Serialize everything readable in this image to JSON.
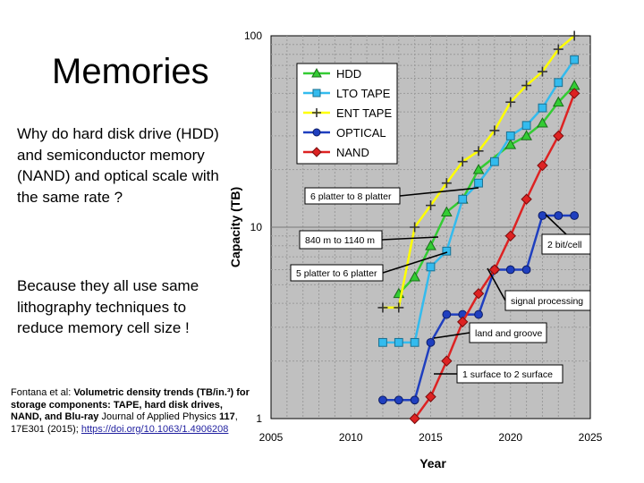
{
  "slide": {
    "title": "Memories",
    "paragraph1": "Why do hard disk drive (HDD) and semiconductor memory (NAND) and optical scale with the same rate ?",
    "paragraph2": "Because they all use same lithography techniques to reduce memory cell size !",
    "citation": {
      "authors": "Fontana et al: ",
      "title_bold": "Volumetric density trends (TB/in.³) for storage components: TAPE, hard disk drives, NAND, and Blu-ray",
      "journal": " Journal of Applied Physics ",
      "volume": "117",
      "rest": ", 17E301 (2015); ",
      "doi": "https://doi.org/10.1063/1.4906208"
    }
  },
  "chart_data": {
    "type": "line",
    "xlabel": "Year",
    "ylabel": "Capacity (TB)",
    "xlim": [
      2005,
      2025
    ],
    "ylim": [
      1,
      100
    ],
    "yscale": "log",
    "x_ticks": [
      "2005",
      "2010",
      "2015",
      "2020",
      "2025"
    ],
    "y_ticks": [
      "1",
      "10",
      "100"
    ],
    "grid": true,
    "legend_position": "top-left",
    "colors": {
      "HDD": "#33cc33",
      "LTO TAPE": "#33bbee",
      "ENT TAPE": "#ffff00",
      "OPTICAL": "#1f3fbf",
      "NAND": "#dd2222"
    },
    "series": [
      {
        "name": "HDD",
        "marker": "triangle",
        "x": [
          2013,
          2014,
          2015,
          2016,
          2017,
          2018,
          2020,
          2021,
          2022,
          2023,
          2024
        ],
        "y": [
          4.5,
          5.5,
          8,
          12,
          14,
          20,
          27,
          30,
          35,
          45,
          55
        ]
      },
      {
        "name": "LTO TAPE",
        "marker": "square",
        "x": [
          2012,
          2013,
          2014,
          2015,
          2016,
          2017,
          2018,
          2019,
          2020,
          2021,
          2022,
          2023,
          2024
        ],
        "y": [
          2.5,
          2.5,
          2.5,
          6.2,
          7.5,
          14,
          17,
          22,
          30,
          34,
          42,
          57,
          75
        ]
      },
      {
        "name": "ENT TAPE",
        "marker": "plus",
        "x": [
          2012,
          2013,
          2014,
          2015,
          2016,
          2017,
          2018,
          2019,
          2020,
          2021,
          2022,
          2023,
          2024
        ],
        "y": [
          3.8,
          3.8,
          10,
          13,
          17,
          22,
          25,
          32,
          45,
          55,
          65,
          85,
          100
        ]
      },
      {
        "name": "OPTICAL",
        "marker": "circle",
        "x": [
          2012,
          2013,
          2014,
          2015,
          2016,
          2017,
          2018,
          2019,
          2020,
          2021,
          2022,
          2023,
          2024
        ],
        "y": [
          1.25,
          1.25,
          1.25,
          2.5,
          3.5,
          3.5,
          3.5,
          6,
          6,
          6,
          11.5,
          11.5,
          11.5
        ]
      },
      {
        "name": "NAND",
        "marker": "diamond",
        "x": [
          2014,
          2015,
          2016,
          2017,
          2018,
          2019,
          2020,
          2021,
          2022,
          2023,
          2024
        ],
        "y": [
          1,
          1.3,
          2,
          3.2,
          4.5,
          6,
          9,
          14,
          21,
          30,
          50
        ]
      }
    ],
    "annotations": [
      {
        "text": "6 platter to 8 platter",
        "x": 2017.5,
        "y": 18
      },
      {
        "text": "840 m to 1140 m",
        "x": 2015.7,
        "y": 10.3
      },
      {
        "text": "5 platter to 6 platter",
        "x": 2015.2,
        "y": 7.5
      },
      {
        "text": "2 bit/cell",
        "x": 2021.5,
        "y": 10.5
      },
      {
        "text": "signal processing",
        "x": 2019,
        "y": 4.8
      },
      {
        "text": "land and groove",
        "x": 2018,
        "y": 3
      },
      {
        "text": "1 surface to 2 surface",
        "x": 2015.2,
        "y": 1.75
      }
    ]
  }
}
